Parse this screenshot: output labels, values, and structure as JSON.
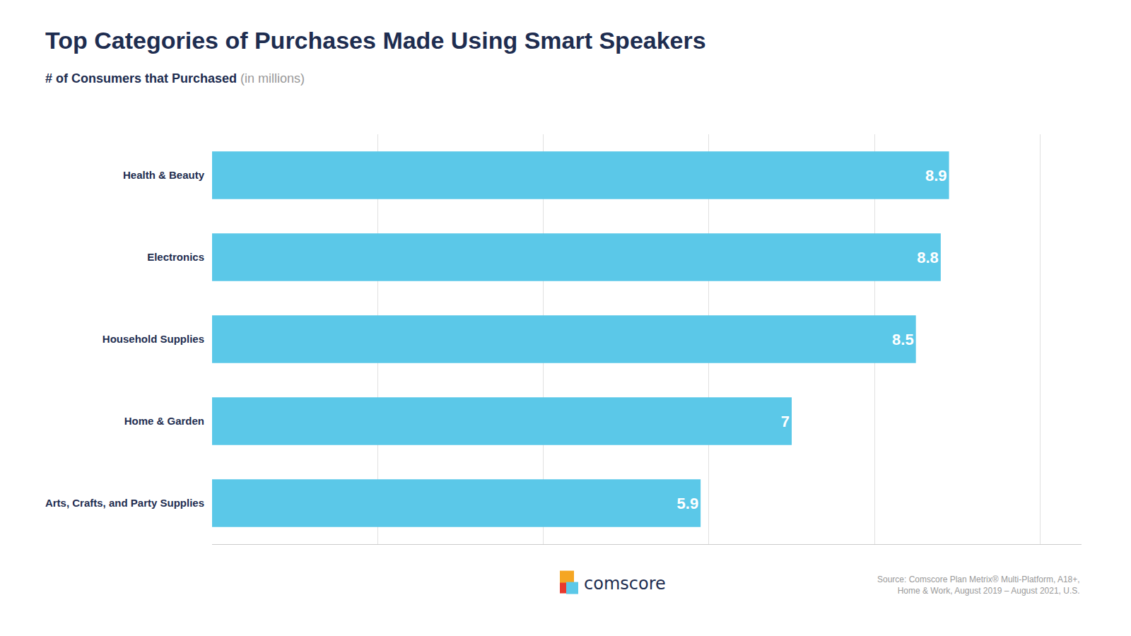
{
  "chart_data": {
    "type": "bar",
    "orientation": "horizontal",
    "title": "Top Categories of Purchases Made Using Smart Speakers",
    "subtitle": "# of Consumers that Purchased",
    "annotations": [
      "(in millions)",
      "Source: Comscore Plan Metrix® Multi-Platform, A18+,\nHome & Work, August 2019 – August 2021, U.S.",
      "comscore"
    ],
    "categories": [
      "Arts, Crafts, and Party Supplies",
      "Home & Garden",
      "Household Supplies",
      "Electronics",
      "Health & Beauty"
    ],
    "values": [
      5.9,
      7.0,
      8.5,
      8.8,
      8.9
    ],
    "color": "#5BC8E8",
    "xlim": [
      0,
      10.5
    ],
    "xticks": [
      0,
      2,
      4,
      6,
      8,
      10
    ],
    "grid": true,
    "data_labels": true,
    "tick_labels": "y"
  }
}
